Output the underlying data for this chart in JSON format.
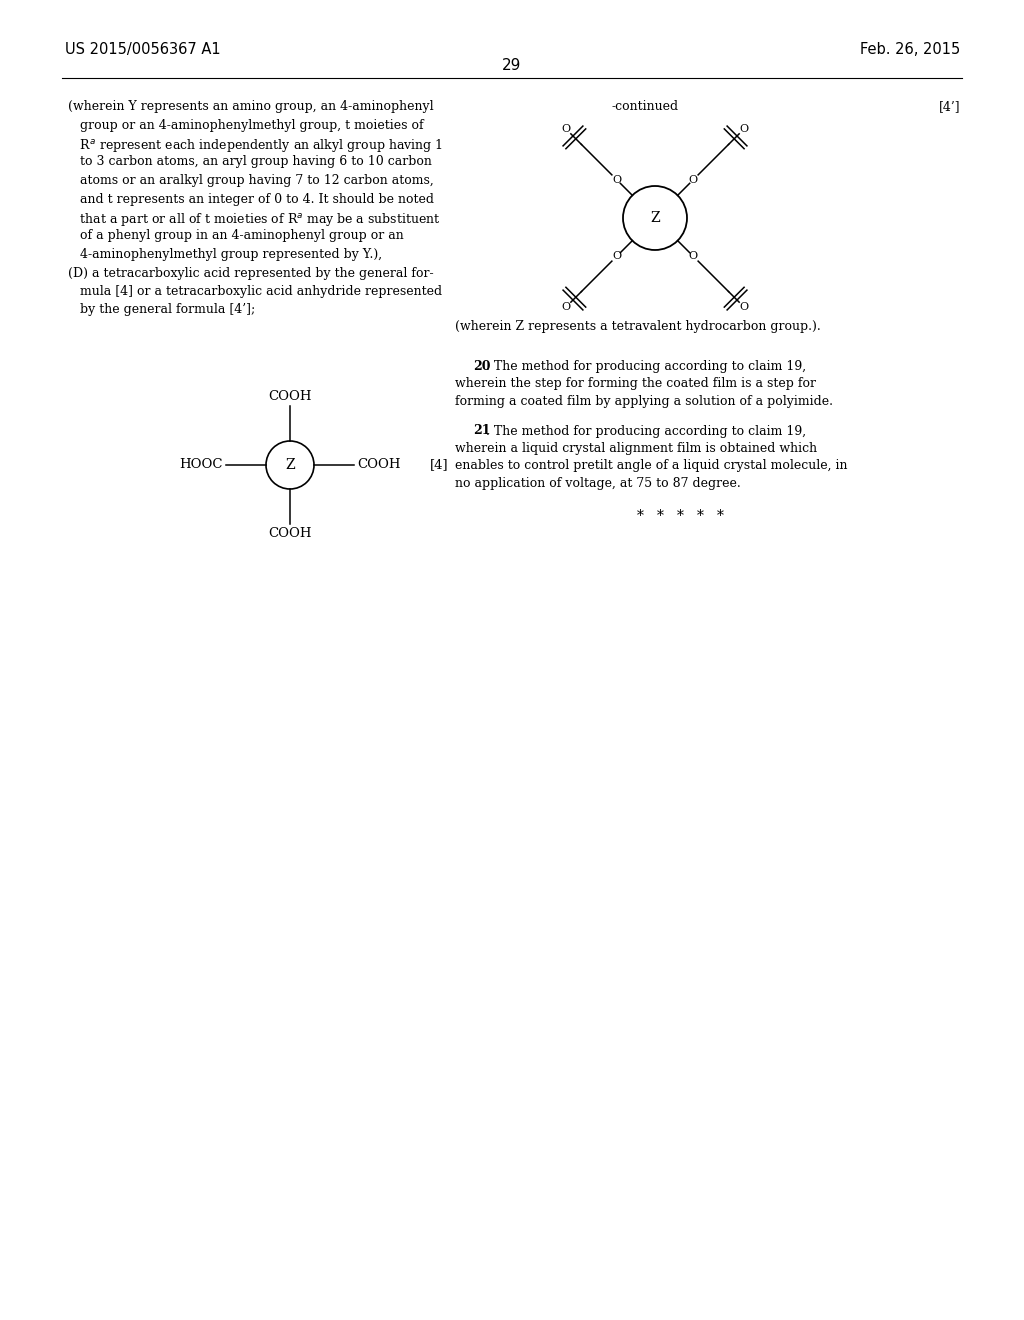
{
  "bg_color": "#ffffff",
  "header_left": "US 2015/0056367 A1",
  "header_right": "Feb. 26, 2015",
  "page_number": "29",
  "left_text_lines": [
    "(wherein Y represents an amino group, an 4-aminophenyl",
    "   group or an 4-aminophenylmethyl group, t moieties of",
    "   R$^{a}$ represent each independently an alkyl group having 1",
    "   to 3 carbon atoms, an aryl group having 6 to 10 carbon",
    "   atoms or an aralkyl group having 7 to 12 carbon atoms,",
    "   and t represents an integer of 0 to 4. It should be noted",
    "   that a part or all of t moieties of R$^{a}$ may be a substituent",
    "   of a phenyl group in an 4-aminophenyl group or an",
    "   4-aminophenylmethyl group represented by Y.),",
    "(D) a tetracarboxylic acid represented by the general for-",
    "   mula [4] or a tetracarboxylic acid anhydride represented",
    "   by the general formula [4’];"
  ],
  "continued_label": "-continued",
  "bracket4p_label": "[4’]",
  "formula4_label": "[4]",
  "wherein_z_text": "(wherein Z represents a tetravalent hydrocarbon group.).",
  "claim20_bold": "20",
  "claim20_rest": ". The method for producing according to claim 19,",
  "claim20_line2": "wherein the step for forming the coated film is a step for",
  "claim20_line3": "forming a coated film by applying a solution of a polyimide.",
  "claim21_bold": "21",
  "claim21_rest": ". The method for producing according to claim 19,",
  "claim21_line2": "wherein a liquid crystal alignment film is obtained which",
  "claim21_line3": "enables to control pretilt angle of a liquid crystal molecule, in",
  "claim21_line4": "no application of voltage, at 75 to 87 degree.",
  "stars_text": "*   *   *   *   *"
}
